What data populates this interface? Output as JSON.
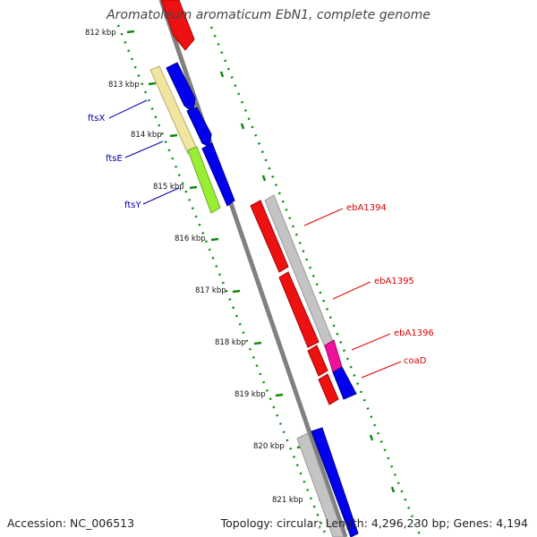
{
  "title": "Aromatoleum aromaticum EbN1, complete genome",
  "footer": {
    "accession": "Accession: NC_006513",
    "summary": "Topology: circular; Length: 4,296,230 bp; Genes: 4,194"
  },
  "ticks": [
    "812 kbp",
    "813 kbp",
    "814 kbp",
    "815 kbp",
    "816 kbp",
    "817 kbp",
    "818 kbp",
    "819 kbp",
    "820 kbp",
    "821 kbp"
  ],
  "genes": [
    {
      "name": "ftsX",
      "color": "#0000aa"
    },
    {
      "name": "ftsE",
      "color": "#0000aa"
    },
    {
      "name": "ftsY",
      "color": "#0000aa"
    },
    {
      "name": "ebA1394",
      "color": "#dd0000"
    },
    {
      "name": "ebA1395",
      "color": "#dd0000"
    },
    {
      "name": "ebA1396",
      "color": "#dd0000"
    },
    {
      "name": "coaD",
      "color": "#dd0000"
    }
  ],
  "colors": {
    "backbone": "#808080",
    "ticks": "#118811",
    "red": "#ee1111",
    "blue": "#0000ee",
    "gray": "#c4c4c4",
    "yellow": "#f0e6a0",
    "green": "#99ee33",
    "magenta": "#ee1199"
  }
}
